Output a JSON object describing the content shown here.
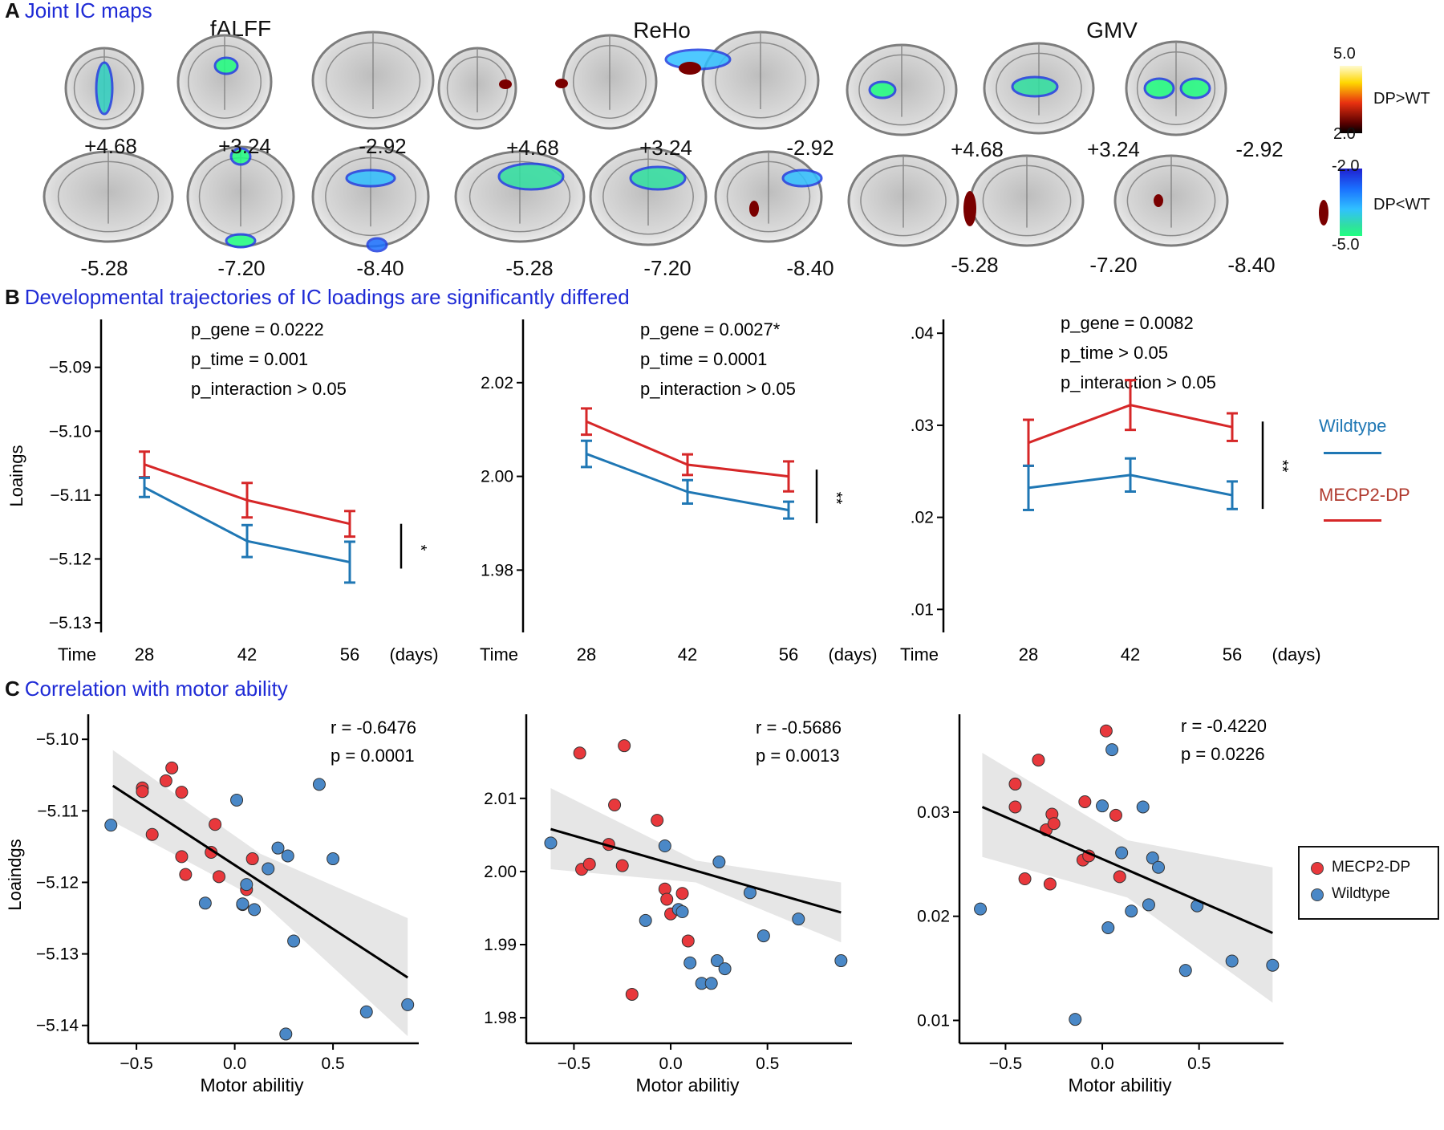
{
  "panelA": {
    "letter": "A",
    "title": "Joint IC maps",
    "modalities": [
      "fALFF",
      "ReHo",
      "GMV"
    ],
    "top_coords": [
      "+4.68",
      "+3.24",
      "-2.92"
    ],
    "bottom_coords": [
      "-5.28",
      "-7.20",
      "-8.40"
    ],
    "colorbar_pos": {
      "max": "5.0",
      "min": "2.0",
      "label": "DP>WT",
      "colors": [
        "#fffbd0",
        "#ffd700",
        "#e83010",
        "#5a0000",
        "#000000"
      ]
    },
    "colorbar_neg": {
      "max": "-2.0",
      "min": "-5.0",
      "label": "DP<WT",
      "colors": [
        "#2020d0",
        "#1a70ff",
        "#30c0ff",
        "#30e0a0",
        "#20ff80"
      ]
    }
  },
  "panelB": {
    "letter": "B",
    "title": "Developmental trajectories of IC loadings are significantly differed",
    "ylabel": "Loaings",
    "time_label": "Time",
    "days_label": "(days)",
    "legend": {
      "wildtype": "Wildtype",
      "mecp2": "MECP2-DP"
    },
    "colors": {
      "wildtype": "#1f77b4",
      "mecp2": "#d62728"
    }
  },
  "panelC": {
    "letter": "C",
    "title": "Correlation with motor ability",
    "ylabel": "Loaindgs",
    "legend": {
      "mecp2": "MECP2-DP",
      "wildtype": "Wildtype"
    },
    "colors": {
      "mecp2": "#e8383c",
      "wildtype": "#4a88c7",
      "band": "#e6e6e6"
    }
  },
  "chart_data": [
    {
      "type": "line",
      "panel": "B1",
      "modality": "fALFF",
      "stats": [
        "p_gene = 0.0222",
        "p_time = 0.001",
        "p_interaction > 0.05"
      ],
      "x": [
        28,
        42,
        56
      ],
      "xticks": [
        "28",
        "42",
        "56"
      ],
      "ylim": [
        -5.1315,
        -5.0825
      ],
      "yticks": [
        -5.13,
        -5.12,
        -5.11,
        -5.1,
        -5.09
      ],
      "ytick_labels": [
        "−5.13",
        "−5.12",
        "−5.11",
        "−5.10",
        "−5.09"
      ],
      "series": [
        {
          "name": "MECP2-DP",
          "values": [
            -5.1052,
            -5.1108,
            -5.1145
          ],
          "err": [
            0.002,
            0.0027,
            0.002
          ]
        },
        {
          "name": "Wildtype",
          "values": [
            -5.1088,
            -5.1172,
            -5.1205
          ],
          "err": [
            0.0015,
            0.0025,
            0.0032
          ]
        }
      ],
      "sig": "*"
    },
    {
      "type": "line",
      "panel": "B2",
      "modality": "ReHo",
      "stats": [
        "p_gene = 0.0027*",
        "p_time = 0.0001",
        "p_interaction > 0.05"
      ],
      "x": [
        28,
        42,
        56
      ],
      "xticks": [
        "28",
        "42",
        "56"
      ],
      "ylim": [
        1.9667,
        2.0335
      ],
      "yticks": [
        1.98,
        2.0,
        2.02
      ],
      "ytick_labels": [
        "1.98",
        "2.00",
        "2.02"
      ],
      "series": [
        {
          "name": "MECP2-DP",
          "values": [
            2.0117,
            2.0025,
            2.0
          ],
          "err": [
            0.0028,
            0.0022,
            0.0032
          ]
        },
        {
          "name": "Wildtype",
          "values": [
            2.0048,
            1.9967,
            1.9928
          ],
          "err": [
            0.0028,
            0.0025,
            0.0018
          ]
        }
      ],
      "sig": "**"
    },
    {
      "type": "line",
      "panel": "B3",
      "modality": "GMV",
      "stats": [
        "p_gene = 0.0082",
        "p_time > 0.05",
        "p_interaction > 0.05"
      ],
      "x": [
        28,
        42,
        56
      ],
      "xticks": [
        "28",
        "42",
        "56"
      ],
      "ylim": [
        0.0075,
        0.0415
      ],
      "yticks": [
        0.01,
        0.02,
        0.03,
        0.04
      ],
      "ytick_labels": [
        ".01",
        ".02",
        ".03",
        ".04"
      ],
      "series": [
        {
          "name": "MECP2-DP",
          "values": [
            0.0281,
            0.0322,
            0.0298
          ],
          "err": [
            0.0025,
            0.0027,
            0.0015
          ]
        },
        {
          "name": "Wildtype",
          "values": [
            0.0232,
            0.0246,
            0.0224
          ],
          "err": [
            0.0024,
            0.0018,
            0.0015
          ]
        }
      ],
      "sig": "**"
    },
    {
      "type": "scatter",
      "panel": "C1",
      "modality": "fALFF",
      "stats": [
        "r = -0.6476",
        "p = 0.0001"
      ],
      "xlabel": "Motor abilitiy",
      "xlim": [
        -0.68,
        0.92
      ],
      "ylim": [
        -5.1425,
        -5.0965
      ],
      "xticks": [
        -0.5,
        0.0,
        0.5
      ],
      "xtick_labels": [
        "−0.5",
        "0.0",
        "0.5"
      ],
      "yticks": [
        -5.14,
        -5.13,
        -5.12,
        -5.11,
        -5.1
      ],
      "ytick_labels": [
        "−5.14",
        "−5.13",
        "−5.12",
        "−5.11",
        "−5.10"
      ],
      "fit": {
        "x": [
          -0.62,
          0.88
        ],
        "y": [
          -5.1065,
          -5.1333
        ]
      },
      "band": {
        "x": [
          -0.62,
          0.13,
          0.88
        ],
        "upper": [
          -5.1015,
          -5.116,
          -5.125
        ],
        "lower": [
          -5.1115,
          -5.1225,
          -5.1415
        ]
      },
      "mecp2": [
        [
          -0.47,
          -5.1068
        ],
        [
          -0.47,
          -5.1073
        ],
        [
          -0.42,
          -5.1133
        ],
        [
          -0.35,
          -5.1058
        ],
        [
          -0.32,
          -5.104
        ],
        [
          -0.27,
          -5.1074
        ],
        [
          -0.27,
          -5.1164
        ],
        [
          -0.25,
          -5.1189
        ],
        [
          -0.1,
          -5.1119
        ],
        [
          -0.12,
          -5.1158
        ],
        [
          -0.08,
          -5.1192
        ],
        [
          0.04,
          -5.1231
        ],
        [
          0.06,
          -5.121
        ],
        [
          0.09,
          -5.1167
        ]
      ],
      "wildtype": [
        [
          -0.63,
          -5.112
        ],
        [
          -0.15,
          -5.1229
        ],
        [
          0.01,
          -5.1085
        ],
        [
          0.04,
          -5.123
        ],
        [
          0.06,
          -5.1203
        ],
        [
          0.1,
          -5.1238
        ],
        [
          0.17,
          -5.1181
        ],
        [
          0.22,
          -5.1152
        ],
        [
          0.27,
          -5.1163
        ],
        [
          0.3,
          -5.1282
        ],
        [
          0.26,
          -5.1412
        ],
        [
          0.43,
          -5.1063
        ],
        [
          0.5,
          -5.1167
        ],
        [
          0.67,
          -5.1381
        ],
        [
          0.88,
          -5.1371
        ]
      ]
    },
    {
      "type": "scatter",
      "panel": "C2",
      "modality": "ReHo",
      "stats": [
        "r = -0.5686",
        "p = 0.0013"
      ],
      "xlabel": "Motor abilitiy",
      "xlim": [
        -0.68,
        0.92
      ],
      "ylim": [
        1.9765,
        2.0215
      ],
      "xticks": [
        -0.5,
        0.0,
        0.5
      ],
      "xtick_labels": [
        "−0.5",
        "0.0",
        "0.5"
      ],
      "yticks": [
        1.98,
        1.99,
        2.0,
        2.01
      ],
      "ytick_labels": [
        "1.98",
        "1.99",
        "2.00",
        "2.01"
      ],
      "fit": {
        "x": [
          -0.62,
          0.88
        ],
        "y": [
          2.0058,
          1.9944
        ]
      },
      "band": {
        "x": [
          -0.62,
          0.13,
          0.88
        ],
        "upper": [
          2.0114,
          2.0015,
          1.9985
        ],
        "lower": [
          2.0003,
          1.9985,
          1.9903
        ]
      },
      "mecp2": [
        [
          -0.47,
          2.0162
        ],
        [
          -0.46,
          2.0003
        ],
        [
          -0.42,
          2.001
        ],
        [
          -0.32,
          2.0037
        ],
        [
          -0.29,
          2.0091
        ],
        [
          -0.25,
          2.0008
        ],
        [
          -0.24,
          2.0172
        ],
        [
          -0.2,
          1.9832
        ],
        [
          -0.07,
          2.007
        ],
        [
          -0.03,
          1.9976
        ],
        [
          0.0,
          1.9942
        ],
        [
          0.06,
          1.997
        ],
        [
          0.09,
          1.9905
        ],
        [
          -0.02,
          1.9962
        ]
      ],
      "wildtype": [
        [
          -0.62,
          2.0039
        ],
        [
          -0.13,
          1.9933
        ],
        [
          -0.03,
          2.0035
        ],
        [
          0.04,
          1.9948
        ],
        [
          0.06,
          1.9945
        ],
        [
          0.1,
          1.9875
        ],
        [
          0.16,
          1.9847
        ],
        [
          0.21,
          1.9847
        ],
        [
          0.24,
          1.9878
        ],
        [
          0.28,
          1.9867
        ],
        [
          0.25,
          2.0013
        ],
        [
          0.41,
          1.9971
        ],
        [
          0.48,
          1.9912
        ],
        [
          0.66,
          1.9935
        ],
        [
          0.88,
          1.9878
        ]
      ]
    },
    {
      "type": "scatter",
      "panel": "C3",
      "modality": "GMV",
      "stats": [
        "r = -0.4220",
        "p = 0.0226"
      ],
      "xlabel": "Motor abilitiy",
      "xlim": [
        -0.68,
        0.92
      ],
      "ylim": [
        0.0078,
        0.0394
      ],
      "xticks": [
        -0.5,
        0.0,
        0.5
      ],
      "xtick_labels": [
        "−0.5",
        "0.0",
        "0.5"
      ],
      "yticks": [
        0.01,
        0.02,
        0.03
      ],
      "ytick_labels": [
        "0.01",
        "0.02",
        "0.03"
      ],
      "fit": {
        "x": [
          -0.62,
          0.88
        ],
        "y": [
          0.0305,
          0.0184
        ]
      },
      "band": {
        "x": [
          -0.62,
          0.13,
          0.88
        ],
        "upper": [
          0.0357,
          0.0273,
          0.0247
        ],
        "lower": [
          0.0257,
          0.0218,
          0.0117
        ]
      },
      "mecp2": [
        [
          -0.45,
          0.0327
        ],
        [
          -0.45,
          0.0305
        ],
        [
          -0.4,
          0.0236
        ],
        [
          -0.33,
          0.035
        ],
        [
          -0.29,
          0.0283
        ],
        [
          -0.27,
          0.0231
        ],
        [
          -0.26,
          0.0298
        ],
        [
          -0.25,
          0.0289
        ],
        [
          -0.1,
          0.0254
        ],
        [
          -0.07,
          0.0258
        ],
        [
          -0.09,
          0.031
        ],
        [
          0.02,
          0.0378
        ],
        [
          0.07,
          0.0297
        ],
        [
          0.09,
          0.0238
        ]
      ],
      "wildtype": [
        [
          -0.63,
          0.0207
        ],
        [
          -0.14,
          0.0101
        ],
        [
          0.0,
          0.0306
        ],
        [
          0.03,
          0.0189
        ],
        [
          0.05,
          0.036
        ],
        [
          0.1,
          0.0261
        ],
        [
          0.15,
          0.0205
        ],
        [
          0.21,
          0.0305
        ],
        [
          0.24,
          0.0211
        ],
        [
          0.26,
          0.0256
        ],
        [
          0.29,
          0.0247
        ],
        [
          0.43,
          0.0148
        ],
        [
          0.49,
          0.021
        ],
        [
          0.67,
          0.0157
        ],
        [
          0.88,
          0.0153
        ]
      ]
    }
  ]
}
